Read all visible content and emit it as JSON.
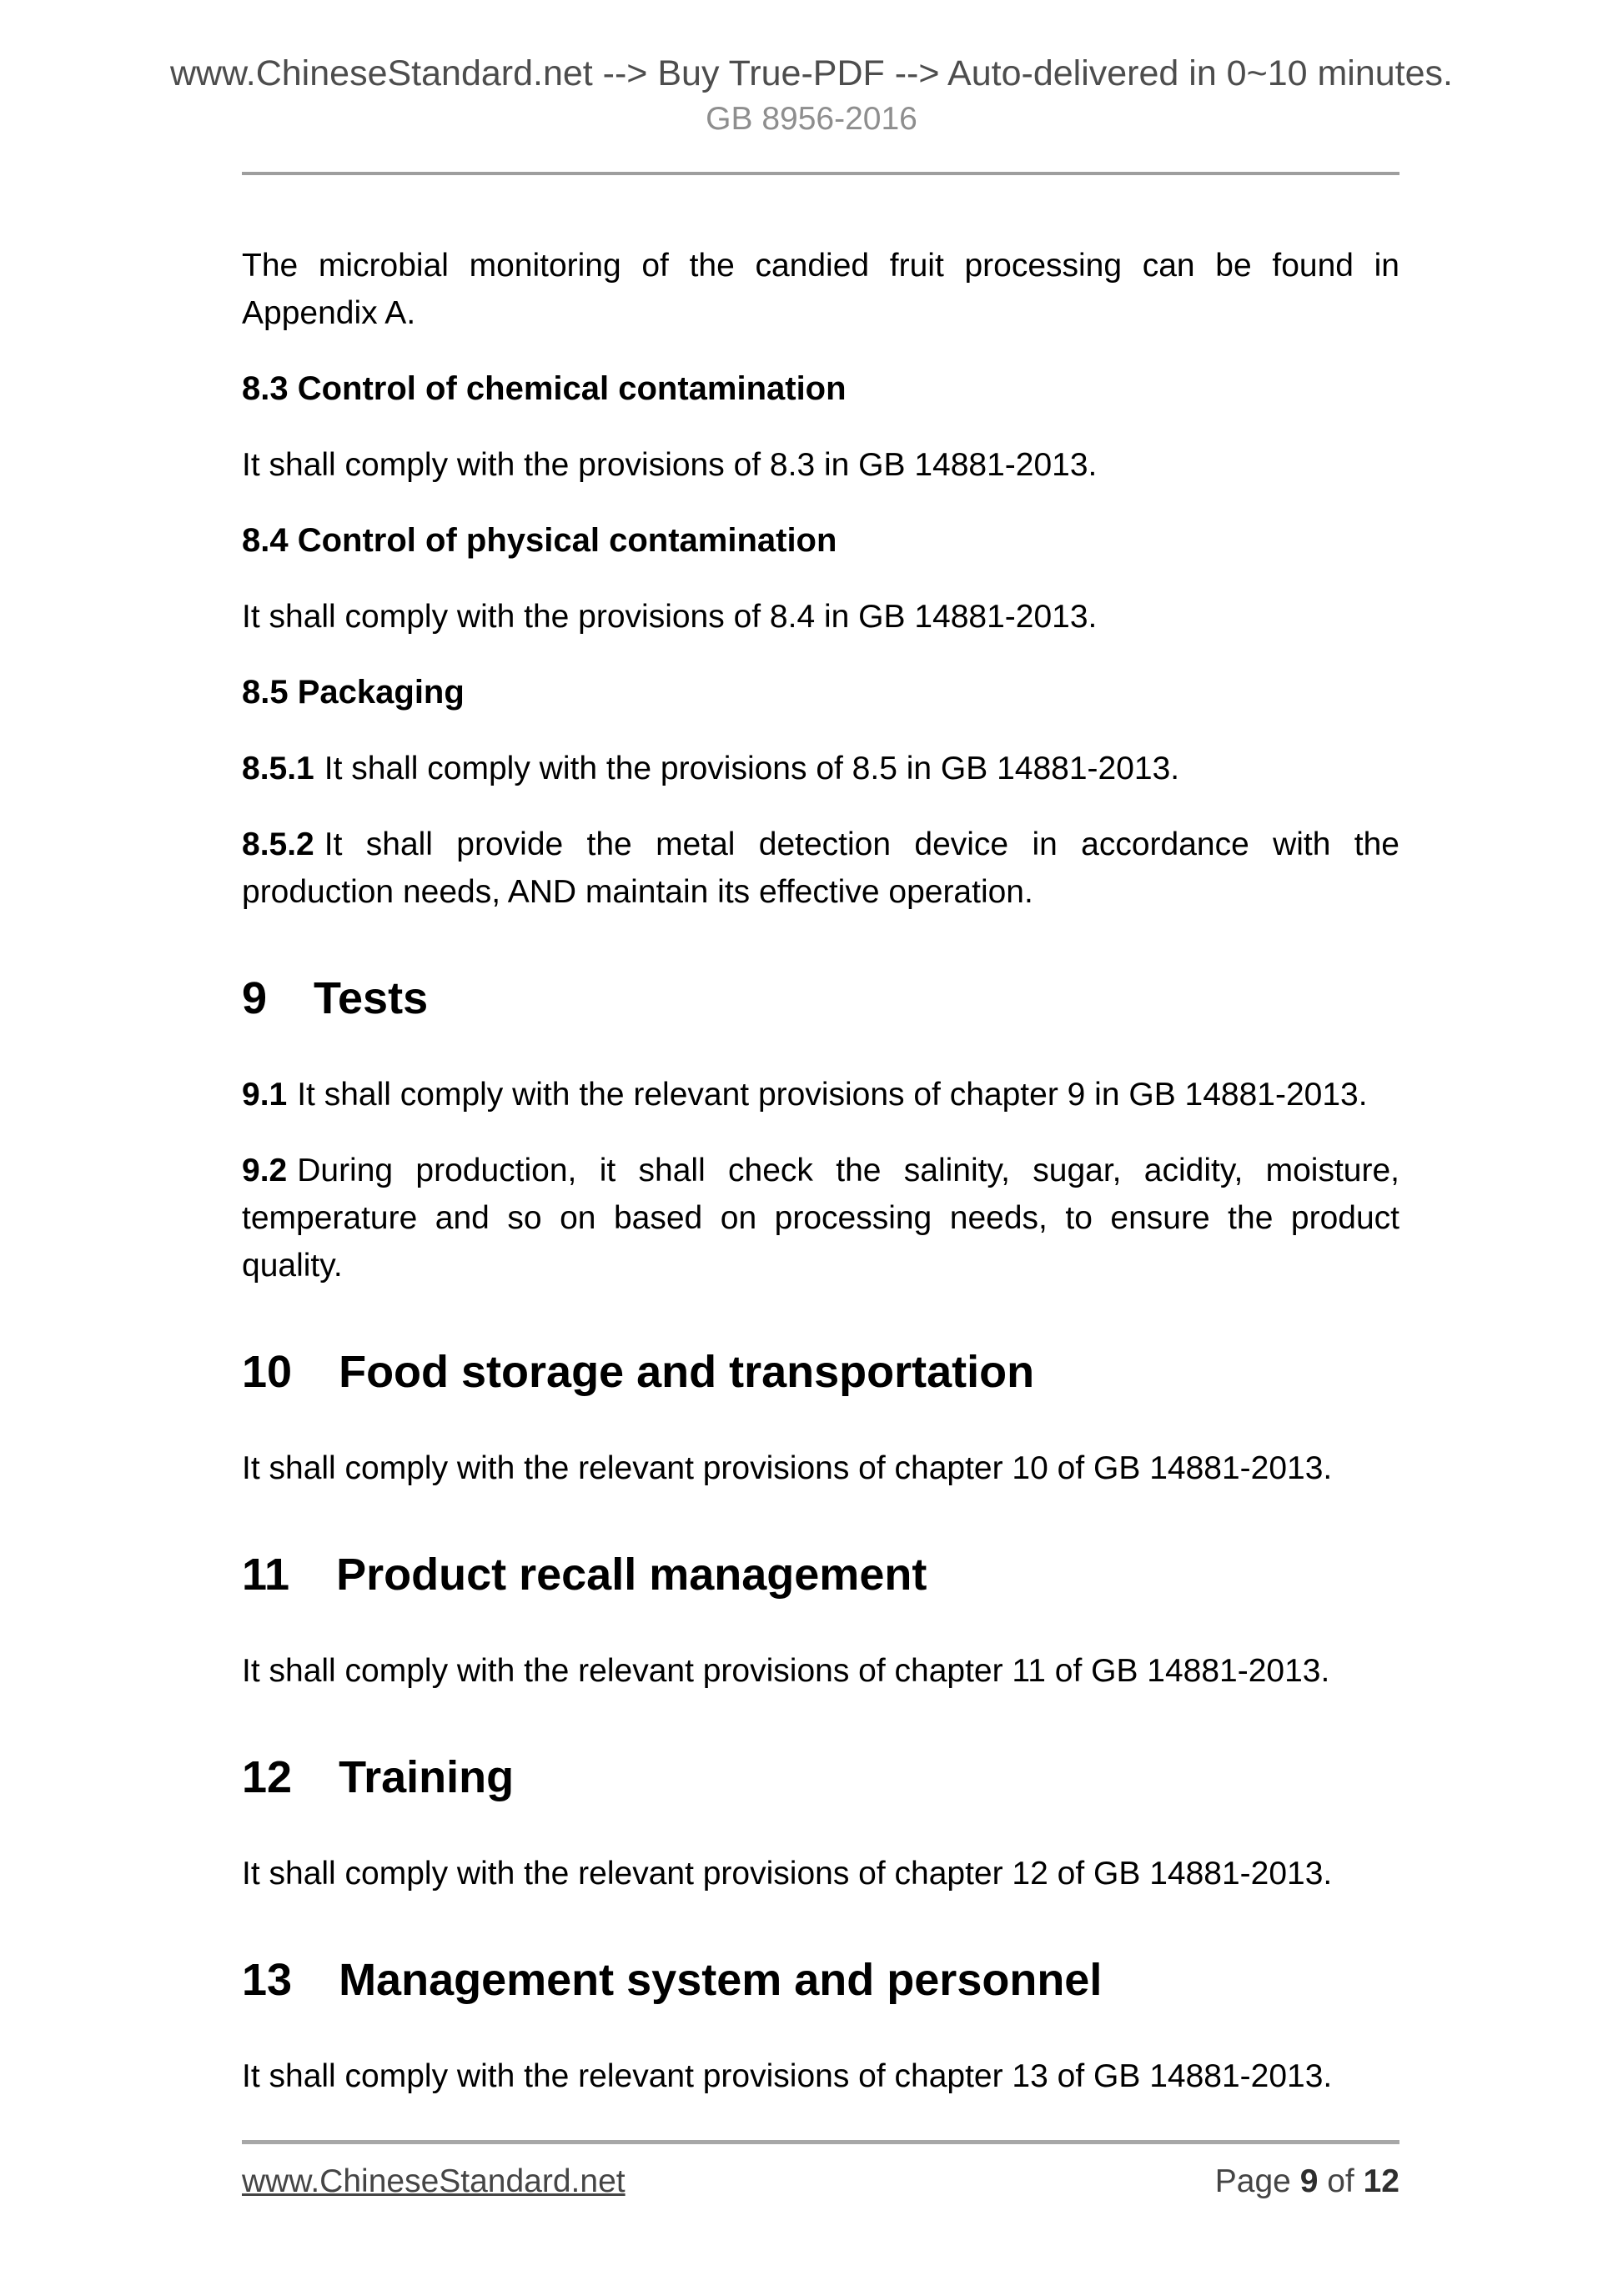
{
  "header": {
    "line1": "www.ChineseStandard.net --> Buy True-PDF --> Auto-delivered in 0~10 minutes.",
    "doc_code": "GB 8956-2016"
  },
  "content": {
    "blocks": [
      {
        "type": "paragraph",
        "lines": [
          "The microbial monitoring of the candied fruit processing can be found in",
          "Appendix A."
        ]
      },
      {
        "type": "subheading",
        "text": "8.3 Control of chemical contamination"
      },
      {
        "type": "paragraph",
        "lines": [
          "It shall comply with the provisions of 8.3 in GB 14881-2013."
        ]
      },
      {
        "type": "subheading",
        "text": "8.4 Control of physical contamination"
      },
      {
        "type": "paragraph",
        "lines": [
          "It shall comply with the provisions of 8.4 in GB 14881-2013."
        ]
      },
      {
        "type": "subheading",
        "text": "8.5 Packaging"
      },
      {
        "type": "paragraph",
        "bold": "8.5.1",
        "lines": [
          "It shall comply with the provisions of 8.5 in GB 14881-2013."
        ]
      },
      {
        "type": "paragraph",
        "bold": "8.5.2",
        "lines": [
          "It shall provide the metal detection device in accordance with the",
          "production needs, AND maintain its effective operation."
        ]
      },
      {
        "type": "heading",
        "number": "9",
        "title": "Tests"
      },
      {
        "type": "paragraph",
        "bold": "9.1",
        "lines": [
          "It shall comply with the relevant provisions of chapter 9 in GB 14881-2013."
        ]
      },
      {
        "type": "paragraph",
        "bold": "9.2",
        "lines": [
          "During production, it shall check the salinity, sugar, acidity, moisture,",
          "temperature and so on based on processing needs, to ensure the product",
          "quality."
        ]
      },
      {
        "type": "heading",
        "number": "10",
        "title": "Food storage and transportation"
      },
      {
        "type": "paragraph",
        "lines": [
          "It shall comply with the relevant provisions of chapter 10 of GB 14881-2013."
        ]
      },
      {
        "type": "heading",
        "number": "11",
        "title": "Product recall management"
      },
      {
        "type": "paragraph",
        "lines": [
          "It shall comply with the relevant provisions of chapter 11 of GB 14881-2013."
        ]
      },
      {
        "type": "heading",
        "number": "12",
        "title": "Training"
      },
      {
        "type": "paragraph",
        "lines": [
          "It shall comply with the relevant provisions of chapter 12 of GB 14881-2013."
        ]
      },
      {
        "type": "heading",
        "number": "13",
        "title": "Management system and personnel"
      },
      {
        "type": "paragraph",
        "lines": [
          "It shall comply with the relevant provisions of chapter 13 of GB 14881-2013."
        ]
      }
    ]
  },
  "footer": {
    "site": "www.ChineseStandard.net",
    "page_label": "Page",
    "page_current": "9",
    "of_label": "of",
    "page_total": "12"
  },
  "colors": {
    "header_gray": "#4d4d4d",
    "code_gray": "#8e8e8e",
    "rule_gray": "#9e9e9e",
    "footer_rule_gray": "#a7a7a7",
    "footer_gray": "#454545",
    "body_text": "#000000"
  }
}
